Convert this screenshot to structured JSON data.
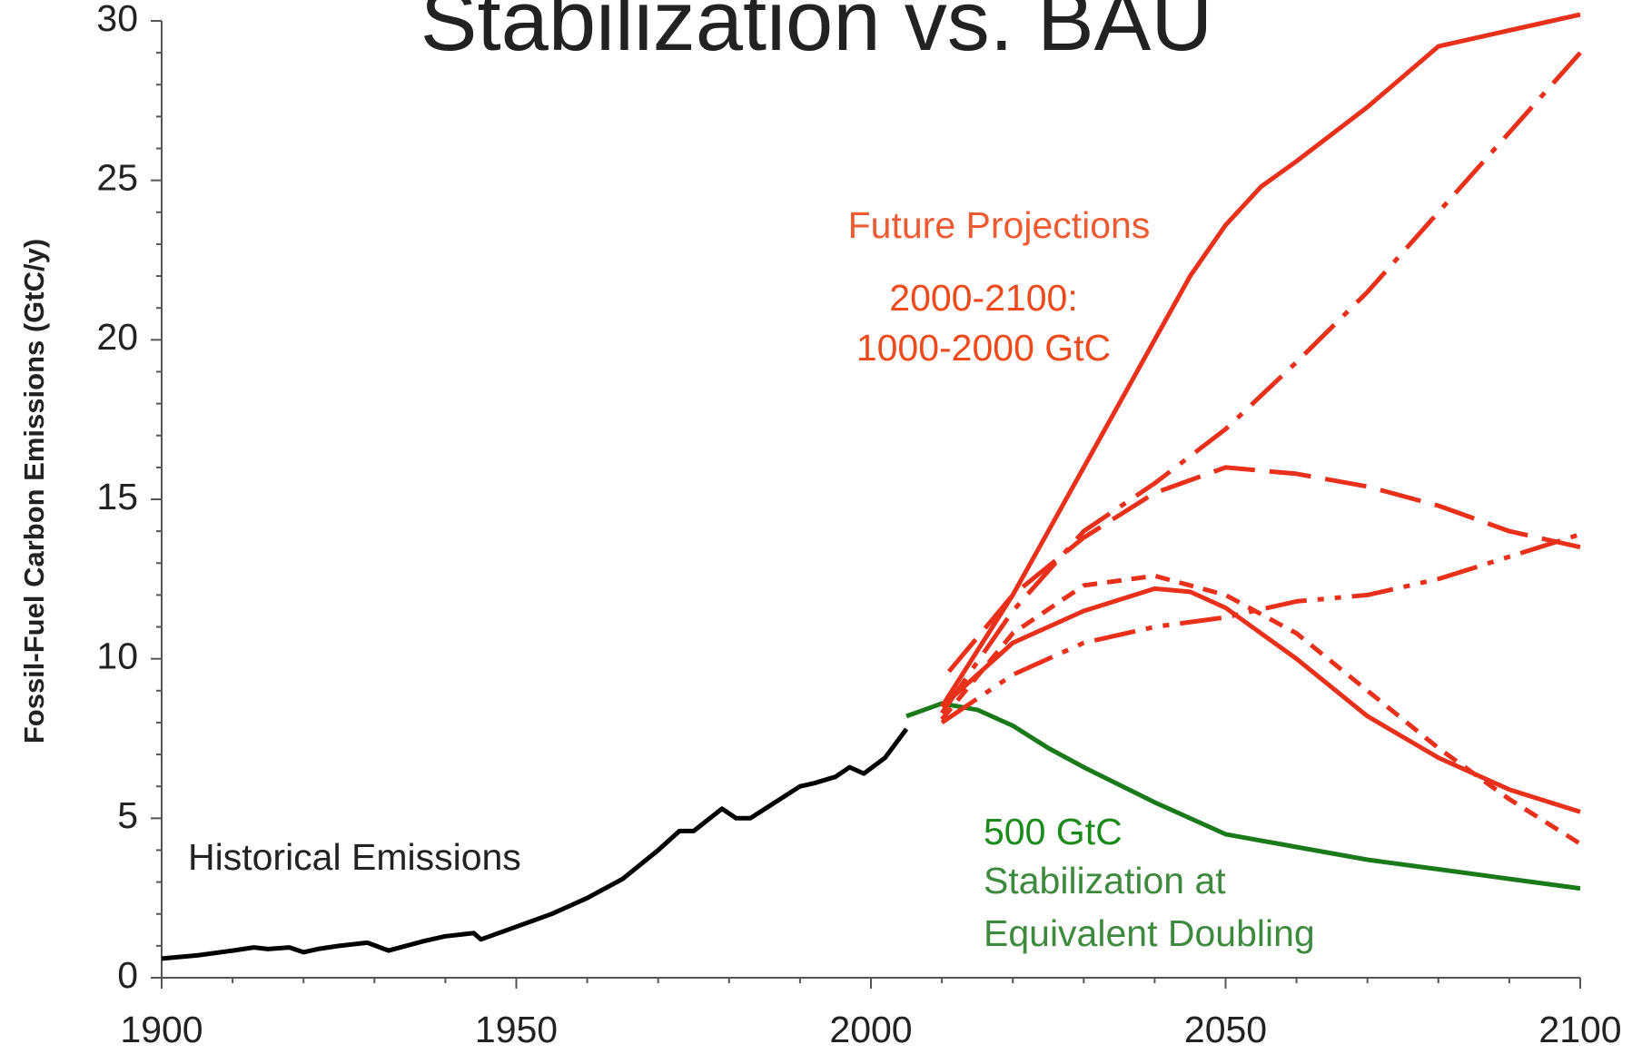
{
  "chart_data": {
    "type": "line",
    "title": "Stabilization vs. BAU",
    "y_label": "Fossil-Fuel Carbon Emissions (GtC/y)",
    "xlim": [
      1900,
      2100
    ],
    "xticks": [
      1900,
      1950,
      2000,
      2050,
      2100
    ],
    "xminor": [
      1910,
      1920,
      1930,
      1940,
      1960,
      1970,
      1980,
      1990,
      2010,
      2020,
      2030,
      2040,
      2060,
      2070,
      2080,
      2090
    ],
    "ylim": [
      0,
      30
    ],
    "yticks": [
      0,
      5,
      10,
      15,
      20,
      25,
      30
    ],
    "yminor": [
      1,
      2,
      3,
      4,
      6,
      7,
      8,
      9,
      11,
      12,
      13,
      14,
      16,
      17,
      18,
      19,
      21,
      22,
      23,
      24,
      26,
      27,
      28,
      29
    ],
    "grid": false,
    "series": [
      {
        "color": "#000000",
        "style": "solid",
        "x": [
          1900,
          1905,
          1910,
          1913,
          1915,
          1918,
          1920,
          1922,
          1925,
          1929,
          1932,
          1937,
          1940,
          1944,
          1945,
          1950,
          1955,
          1960,
          1965,
          1970,
          1973,
          1975,
          1979,
          1981,
          1983,
          1990,
          1992,
          1995,
          1997,
          1999,
          2002,
          2005
        ],
        "values": [
          0.6,
          0.7,
          0.85,
          0.95,
          0.9,
          0.95,
          0.8,
          0.9,
          1.0,
          1.1,
          0.85,
          1.15,
          1.3,
          1.4,
          1.2,
          1.6,
          2.0,
          2.5,
          3.1,
          4.0,
          4.6,
          4.6,
          5.3,
          5.0,
          5.0,
          6.0,
          6.1,
          6.3,
          6.6,
          6.4,
          6.9,
          7.8
        ]
      },
      {
        "color": "#1a7a1a",
        "style": "solid",
        "x": [
          2005,
          2010,
          2015,
          2020,
          2025,
          2030,
          2040,
          2050,
          2060,
          2070,
          2080,
          2090,
          2100
        ],
        "values": [
          8.2,
          8.6,
          8.4,
          7.9,
          7.2,
          6.6,
          5.5,
          4.5,
          4.1,
          3.7,
          3.4,
          3.1,
          2.8
        ]
      },
      {
        "color": "#e8301a",
        "style": "solid",
        "x": [
          2010,
          2020,
          2030,
          2040,
          2045,
          2050,
          2055,
          2060,
          2070,
          2080,
          2090,
          2100
        ],
        "values": [
          8.5,
          12,
          16,
          20,
          22,
          23.6,
          24.8,
          25.6,
          27.3,
          29.2,
          29.7,
          30.2
        ]
      },
      {
        "color": "#e8301a",
        "style": "dashdot",
        "x": [
          2010,
          2020,
          2030,
          2040,
          2050,
          2060,
          2070,
          2080,
          2090,
          2100
        ],
        "values": [
          8.3,
          11.5,
          14,
          15.5,
          17.2,
          19.3,
          21.5,
          24,
          26.5,
          29
        ]
      },
      {
        "color": "#e8301a",
        "style": "dash",
        "x": [
          2011,
          2020,
          2030,
          2040,
          2050,
          2060,
          2070,
          2080,
          2090,
          2100
        ],
        "values": [
          9.6,
          12,
          13.8,
          15.2,
          16,
          15.8,
          15.4,
          14.8,
          14,
          13.5
        ]
      },
      {
        "color": "#e8301a",
        "style": "solid",
        "x": [
          2010,
          2020,
          2030,
          2040,
          2045,
          2050,
          2060,
          2070,
          2080,
          2090,
          2100
        ],
        "values": [
          8.5,
          10.5,
          11.5,
          12.2,
          12.1,
          11.6,
          10,
          8.2,
          6.9,
          5.9,
          5.2
        ]
      },
      {
        "color": "#e8301a",
        "style": "shortdash",
        "x": [
          2010,
          2020,
          2030,
          2040,
          2050,
          2060,
          2070,
          2080,
          2090,
          2100
        ],
        "values": [
          8.1,
          10.8,
          12.3,
          12.6,
          12.0,
          10.8,
          9,
          7.2,
          5.6,
          4.2
        ]
      },
      {
        "color": "#e8301a",
        "style": "dashdotdot",
        "x": [
          2010,
          2020,
          2030,
          2040,
          2050,
          2060,
          2070,
          2080,
          2090,
          2100
        ],
        "values": [
          8,
          9.5,
          10.5,
          11,
          11.3,
          11.8,
          12,
          12.5,
          13.2,
          13.9
        ]
      }
    ],
    "annotations": [
      {
        "text": "Future Projections",
        "color": "#ee5a32"
      },
      {
        "text": "2000-2100:",
        "color": "#ee4a1c"
      },
      {
        "text": "1000-2000 GtC",
        "color": "#ee4a1c"
      },
      {
        "text": "Historical Emissions",
        "color": "#222222"
      },
      {
        "text": "500 GtC",
        "color": "#1a8a1a"
      },
      {
        "text": "Stabilization at",
        "color": "#3d8a3d"
      },
      {
        "text": "Equivalent Doubling",
        "color": "#3d8a3d"
      }
    ]
  }
}
